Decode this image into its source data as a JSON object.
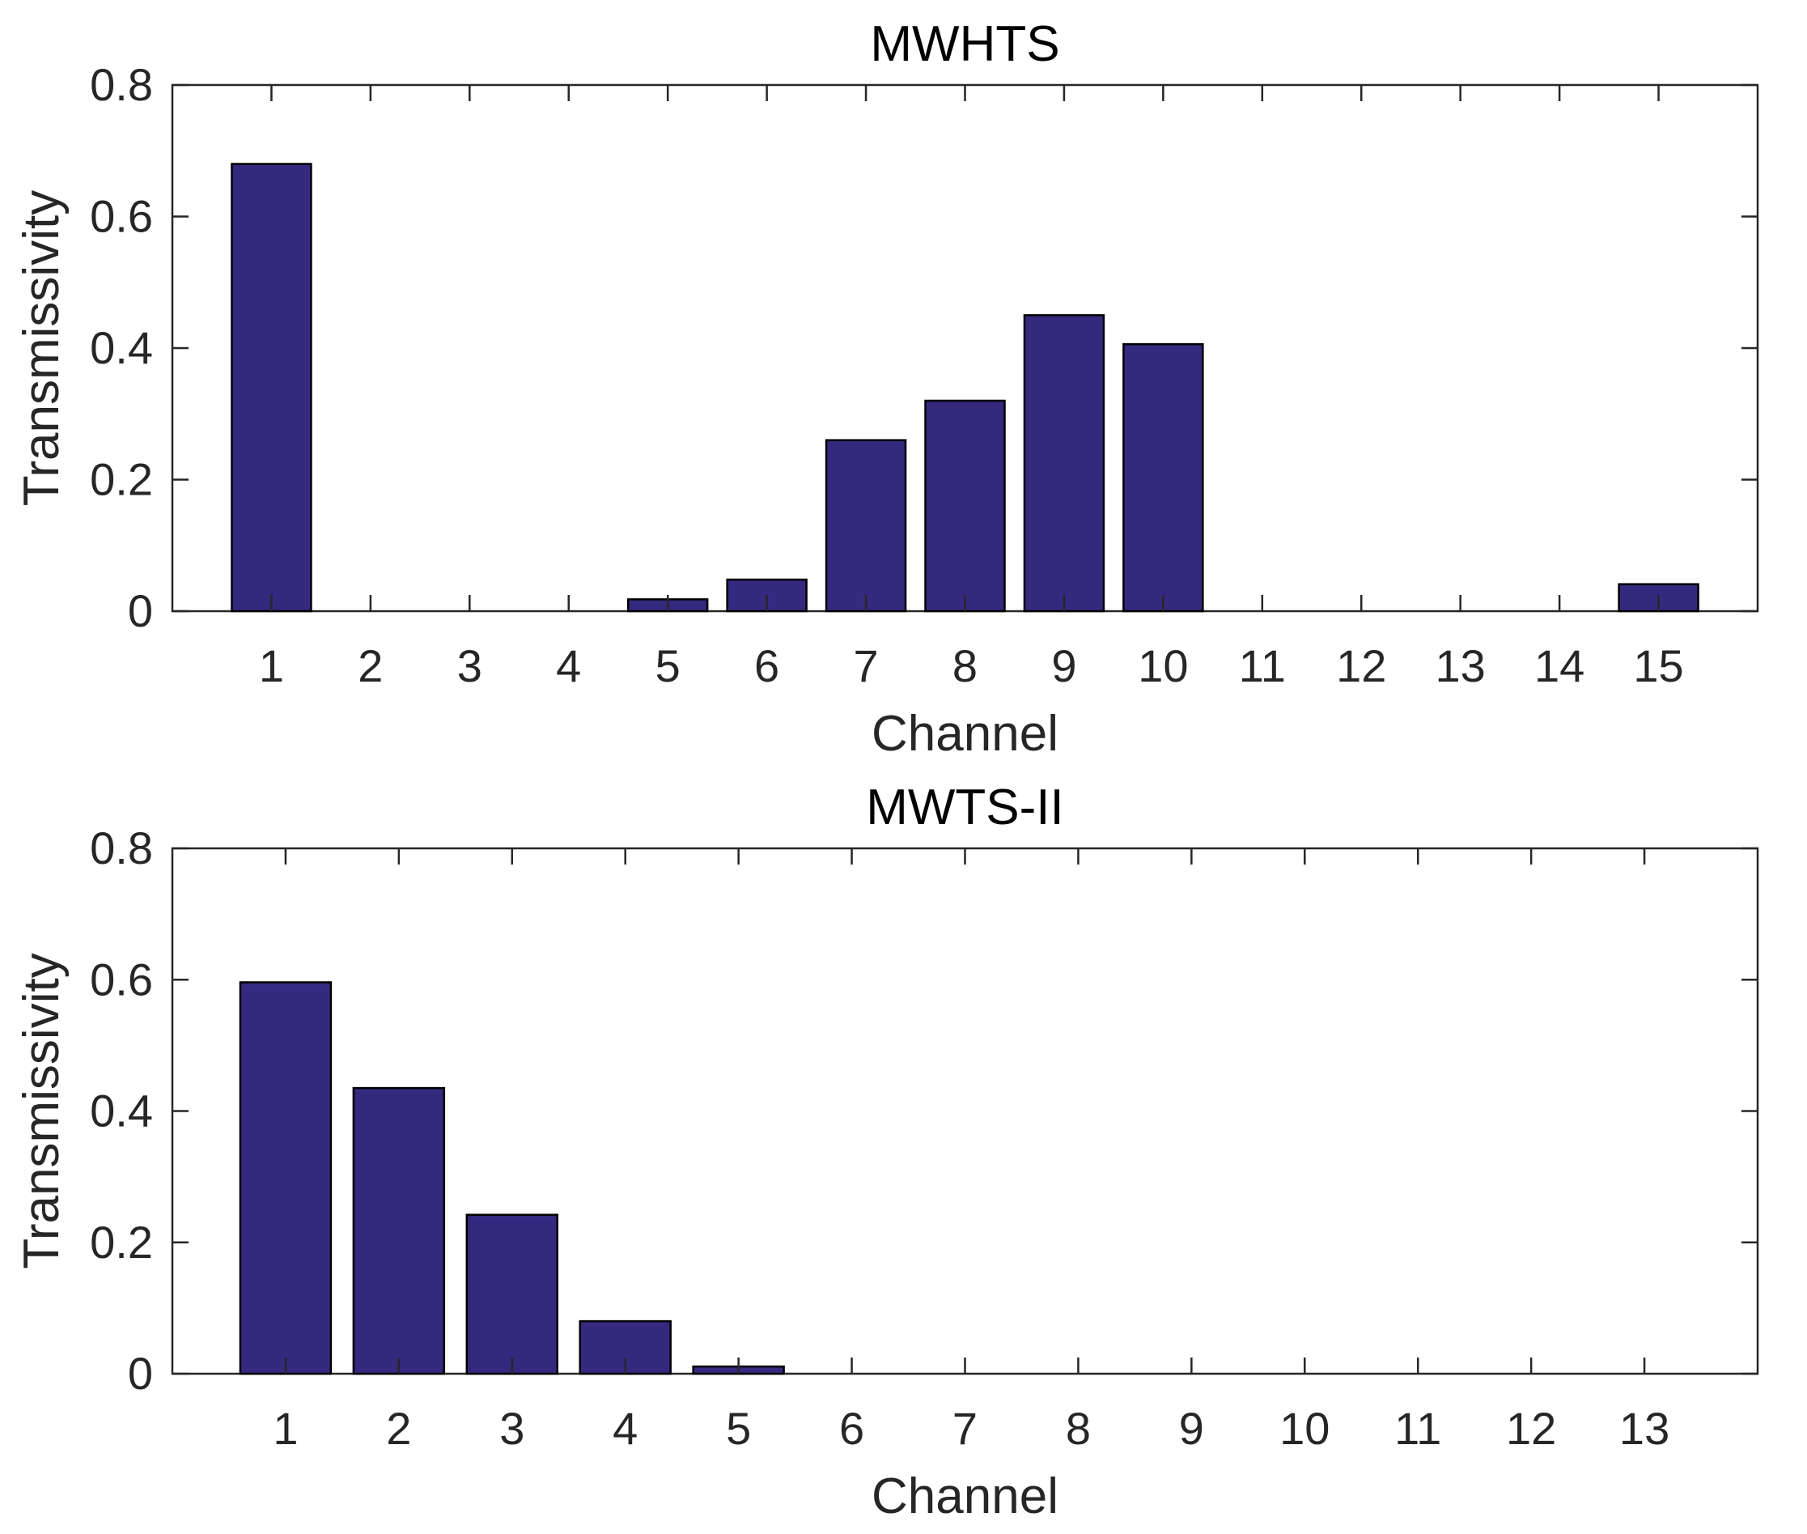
{
  "bar_color": "#35297F",
  "chart_data": [
    {
      "type": "bar",
      "title": "MWHTS",
      "xlabel": "Channel",
      "ylabel": "Transmissivity",
      "categories": [
        "1",
        "2",
        "3",
        "4",
        "5",
        "6",
        "7",
        "8",
        "9",
        "10",
        "11",
        "12",
        "13",
        "14",
        "15"
      ],
      "values": [
        0.68,
        0,
        0,
        0,
        0.018,
        0.048,
        0.26,
        0.32,
        0.45,
        0.406,
        0,
        0,
        0,
        0,
        0.041
      ],
      "ylim": [
        0,
        0.8
      ],
      "yticks": [
        "0",
        "0.2",
        "0.4",
        "0.6",
        "0.8"
      ],
      "grid": false,
      "legend": false
    },
    {
      "type": "bar",
      "title": "MWTS-II",
      "xlabel": "Channel",
      "ylabel": "Transmissivity",
      "categories": [
        "1",
        "2",
        "3",
        "4",
        "5",
        "6",
        "7",
        "8",
        "9",
        "10",
        "11",
        "12",
        "13"
      ],
      "values": [
        0.596,
        0.435,
        0.242,
        0.08,
        0.011,
        0,
        0,
        0,
        0,
        0,
        0,
        0,
        0
      ],
      "ylim": [
        0,
        0.8
      ],
      "yticks": [
        "0",
        "0.2",
        "0.4",
        "0.6",
        "0.8"
      ],
      "grid": false,
      "legend": false
    }
  ]
}
